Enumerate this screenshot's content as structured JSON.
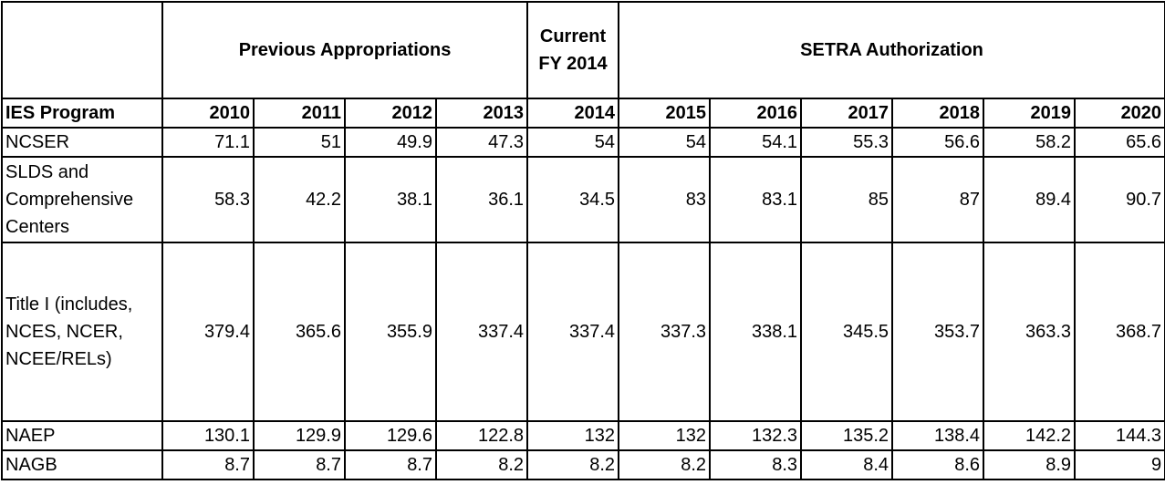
{
  "header_groups": {
    "previous": "Previous Appropriations",
    "current_line1": "Current",
    "current_line2": "FY 2014",
    "setra": "SETRA Authorization"
  },
  "column_label": "IES Program",
  "years": [
    "2010",
    "2011",
    "2012",
    "2013",
    "2014",
    "2015",
    "2016",
    "2017",
    "2018",
    "2019",
    "2020"
  ],
  "rows": [
    {
      "program_lines": [
        "NCSER"
      ],
      "values": [
        "71.1",
        "51",
        "49.9",
        "47.3",
        "54",
        "54",
        "54.1",
        "55.3",
        "56.6",
        "58.2",
        "65.6"
      ]
    },
    {
      "program_lines": [
        "SLDS and",
        "Comprehensive",
        "Centers"
      ],
      "values": [
        "58.3",
        "42.2",
        "38.1",
        "36.1",
        "34.5",
        "83",
        "83.1",
        "85",
        "87",
        "89.4",
        "90.7"
      ]
    },
    {
      "program_lines": [
        "Title I (includes,",
        "NCES, NCER,",
        "NCEE/RELs)"
      ],
      "values": [
        "379.4",
        "365.6",
        "355.9",
        "337.4",
        "337.4",
        "337.3",
        "338.1",
        "345.5",
        "353.7",
        "363.3",
        "368.7"
      ]
    },
    {
      "program_lines": [
        "NAEP"
      ],
      "values": [
        "130.1",
        "129.9",
        "129.6",
        "122.8",
        "132",
        "132",
        "132.3",
        "135.2",
        "138.4",
        "142.2",
        "144.3"
      ]
    },
    {
      "program_lines": [
        "NAGB"
      ],
      "values": [
        "8.7",
        "8.7",
        "8.7",
        "8.2",
        "8.2",
        "8.2",
        "8.3",
        "8.4",
        "8.6",
        "8.9",
        "9"
      ]
    }
  ]
}
